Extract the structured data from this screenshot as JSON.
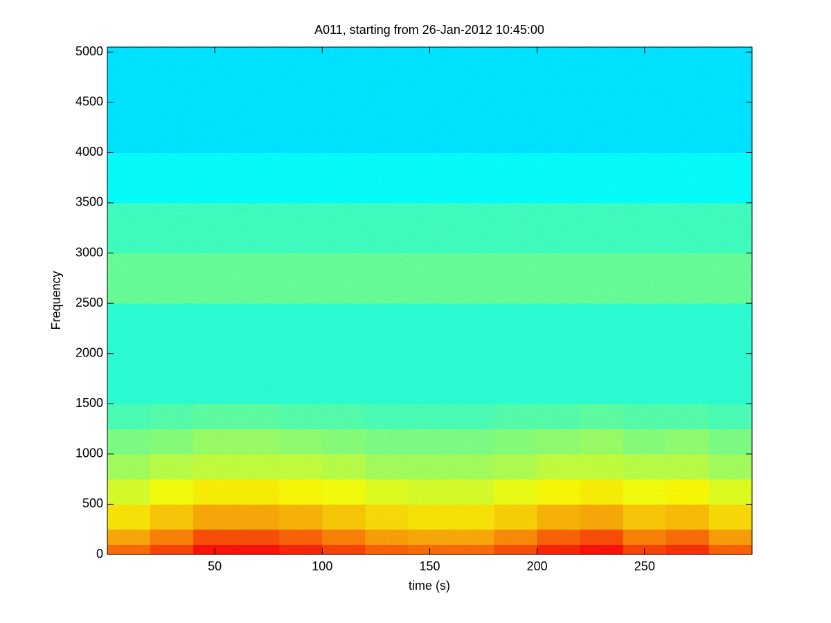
{
  "chart_data": {
    "type": "heatmap",
    "title": "A011, starting from 26-Jan-2012 10:45:00",
    "xlabel": "time (s)",
    "ylabel": "Frequency",
    "colormap": "jet",
    "xlim": [
      0,
      300
    ],
    "ylim": [
      0,
      5050
    ],
    "xticks": [
      50,
      100,
      150,
      200,
      250
    ],
    "yticks": [
      0,
      500,
      1000,
      1500,
      2000,
      2500,
      3000,
      3500,
      4000,
      4500,
      5000
    ],
    "x_edges": [
      0,
      20,
      40,
      60,
      80,
      100,
      120,
      140,
      160,
      180,
      200,
      220,
      240,
      260,
      280,
      300
    ],
    "y_edges": [
      0,
      100,
      250,
      500,
      750,
      1000,
      1250,
      1500,
      2000,
      2500,
      3000,
      3500,
      4000,
      5050
    ],
    "z": [
      [
        0.77,
        0.81,
        0.86,
        0.86,
        0.84,
        0.81,
        0.78,
        0.77,
        0.77,
        0.8,
        0.84,
        0.86,
        0.81,
        0.83,
        0.78
      ],
      [
        0.71,
        0.75,
        0.8,
        0.8,
        0.78,
        0.75,
        0.72,
        0.71,
        0.71,
        0.74,
        0.78,
        0.8,
        0.75,
        0.77,
        0.72
      ],
      [
        0.65,
        0.68,
        0.71,
        0.71,
        0.7,
        0.68,
        0.66,
        0.65,
        0.65,
        0.67,
        0.7,
        0.71,
        0.68,
        0.69,
        0.66
      ],
      [
        0.59,
        0.62,
        0.64,
        0.64,
        0.63,
        0.62,
        0.6,
        0.59,
        0.59,
        0.61,
        0.63,
        0.64,
        0.62,
        0.63,
        0.6
      ],
      [
        0.54,
        0.56,
        0.57,
        0.57,
        0.57,
        0.56,
        0.54,
        0.54,
        0.54,
        0.55,
        0.57,
        0.57,
        0.56,
        0.56,
        0.54
      ],
      [
        0.5,
        0.51,
        0.53,
        0.53,
        0.52,
        0.51,
        0.5,
        0.5,
        0.5,
        0.51,
        0.52,
        0.53,
        0.51,
        0.52,
        0.5
      ],
      [
        0.45,
        0.46,
        0.47,
        0.47,
        0.46,
        0.46,
        0.45,
        0.45,
        0.45,
        0.46,
        0.46,
        0.47,
        0.46,
        0.46,
        0.45
      ],
      [
        0.42,
        0.42,
        0.42,
        0.42,
        0.42,
        0.42,
        0.42,
        0.42,
        0.42,
        0.42,
        0.42,
        0.42,
        0.42,
        0.42,
        0.42
      ],
      [
        0.42,
        0.42,
        0.42,
        0.42,
        0.42,
        0.42,
        0.42,
        0.42,
        0.42,
        0.42,
        0.42,
        0.42,
        0.42,
        0.42,
        0.42
      ],
      [
        0.48,
        0.48,
        0.48,
        0.48,
        0.48,
        0.48,
        0.48,
        0.48,
        0.48,
        0.48,
        0.48,
        0.48,
        0.48,
        0.48,
        0.48
      ],
      [
        0.44,
        0.44,
        0.44,
        0.44,
        0.44,
        0.44,
        0.44,
        0.44,
        0.44,
        0.44,
        0.44,
        0.44,
        0.44,
        0.44,
        0.44
      ],
      [
        0.38,
        0.38,
        0.38,
        0.38,
        0.38,
        0.38,
        0.38,
        0.38,
        0.38,
        0.38,
        0.38,
        0.38,
        0.38,
        0.38,
        0.38
      ],
      [
        0.35,
        0.35,
        0.35,
        0.35,
        0.35,
        0.35,
        0.35,
        0.35,
        0.35,
        0.35,
        0.35,
        0.35,
        0.35,
        0.35,
        0.35
      ]
    ]
  }
}
